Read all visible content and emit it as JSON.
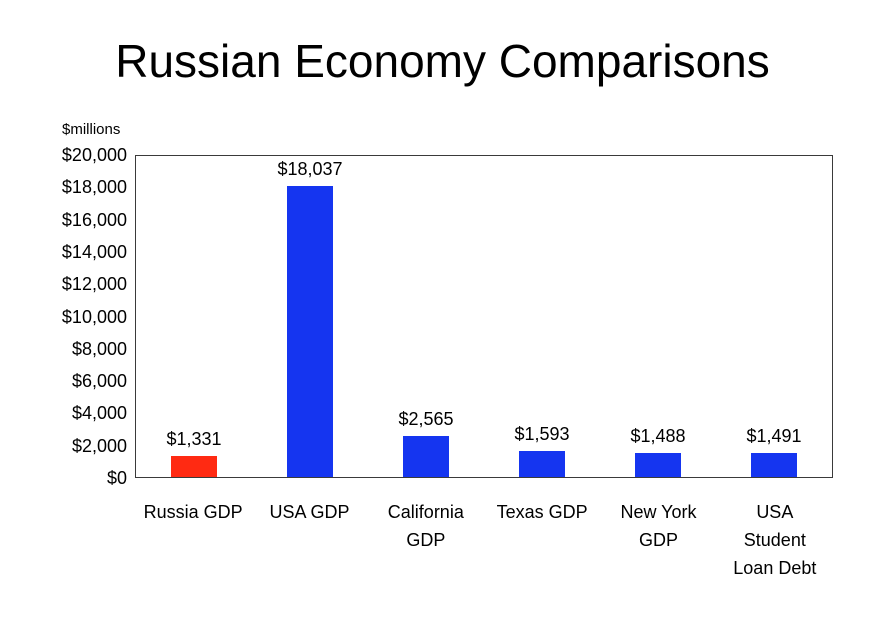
{
  "chart_data": {
    "type": "bar",
    "title": "Russian Economy Comparisons",
    "units_label": "$millions",
    "xlabel": "",
    "ylabel": "$millions",
    "ylim": [
      0,
      20000
    ],
    "tick_step": 2000,
    "grid": false,
    "legend": "none",
    "categories": [
      "Russia GDP",
      "USA GDP",
      "California GDP",
      "Texas GDP",
      "New York GDP",
      "USA Student Loan Debt"
    ],
    "values": [
      1331,
      18037,
      2565,
      1593,
      1488,
      1491
    ],
    "value_labels": [
      "$1,331",
      "$18,037",
      "$2,565",
      "$1,593",
      "$1,488",
      "$1,491"
    ],
    "category_lines": [
      [
        "Russia GDP"
      ],
      [
        "USA GDP"
      ],
      [
        "California",
        "GDP"
      ],
      [
        "Texas GDP"
      ],
      [
        "New York",
        "GDP"
      ],
      [
        "USA",
        "Student",
        "Loan Debt"
      ]
    ],
    "y_tick_labels": [
      "$0",
      "$2,000",
      "$4,000",
      "$6,000",
      "$8,000",
      "$10,000",
      "$12,000",
      "$14,000",
      "$16,000",
      "$18,000",
      "$20,000"
    ],
    "bar_colors": [
      "#ff2a12",
      "#1535f0",
      "#1535f0",
      "#1535f0",
      "#1535f0",
      "#1535f0"
    ],
    "colors": {
      "highlight_bar": "#ff2a12",
      "default_bar": "#1535f0",
      "axis_frame": "#3a3a3a",
      "text": "#000000",
      "background": "#ffffff"
    }
  }
}
